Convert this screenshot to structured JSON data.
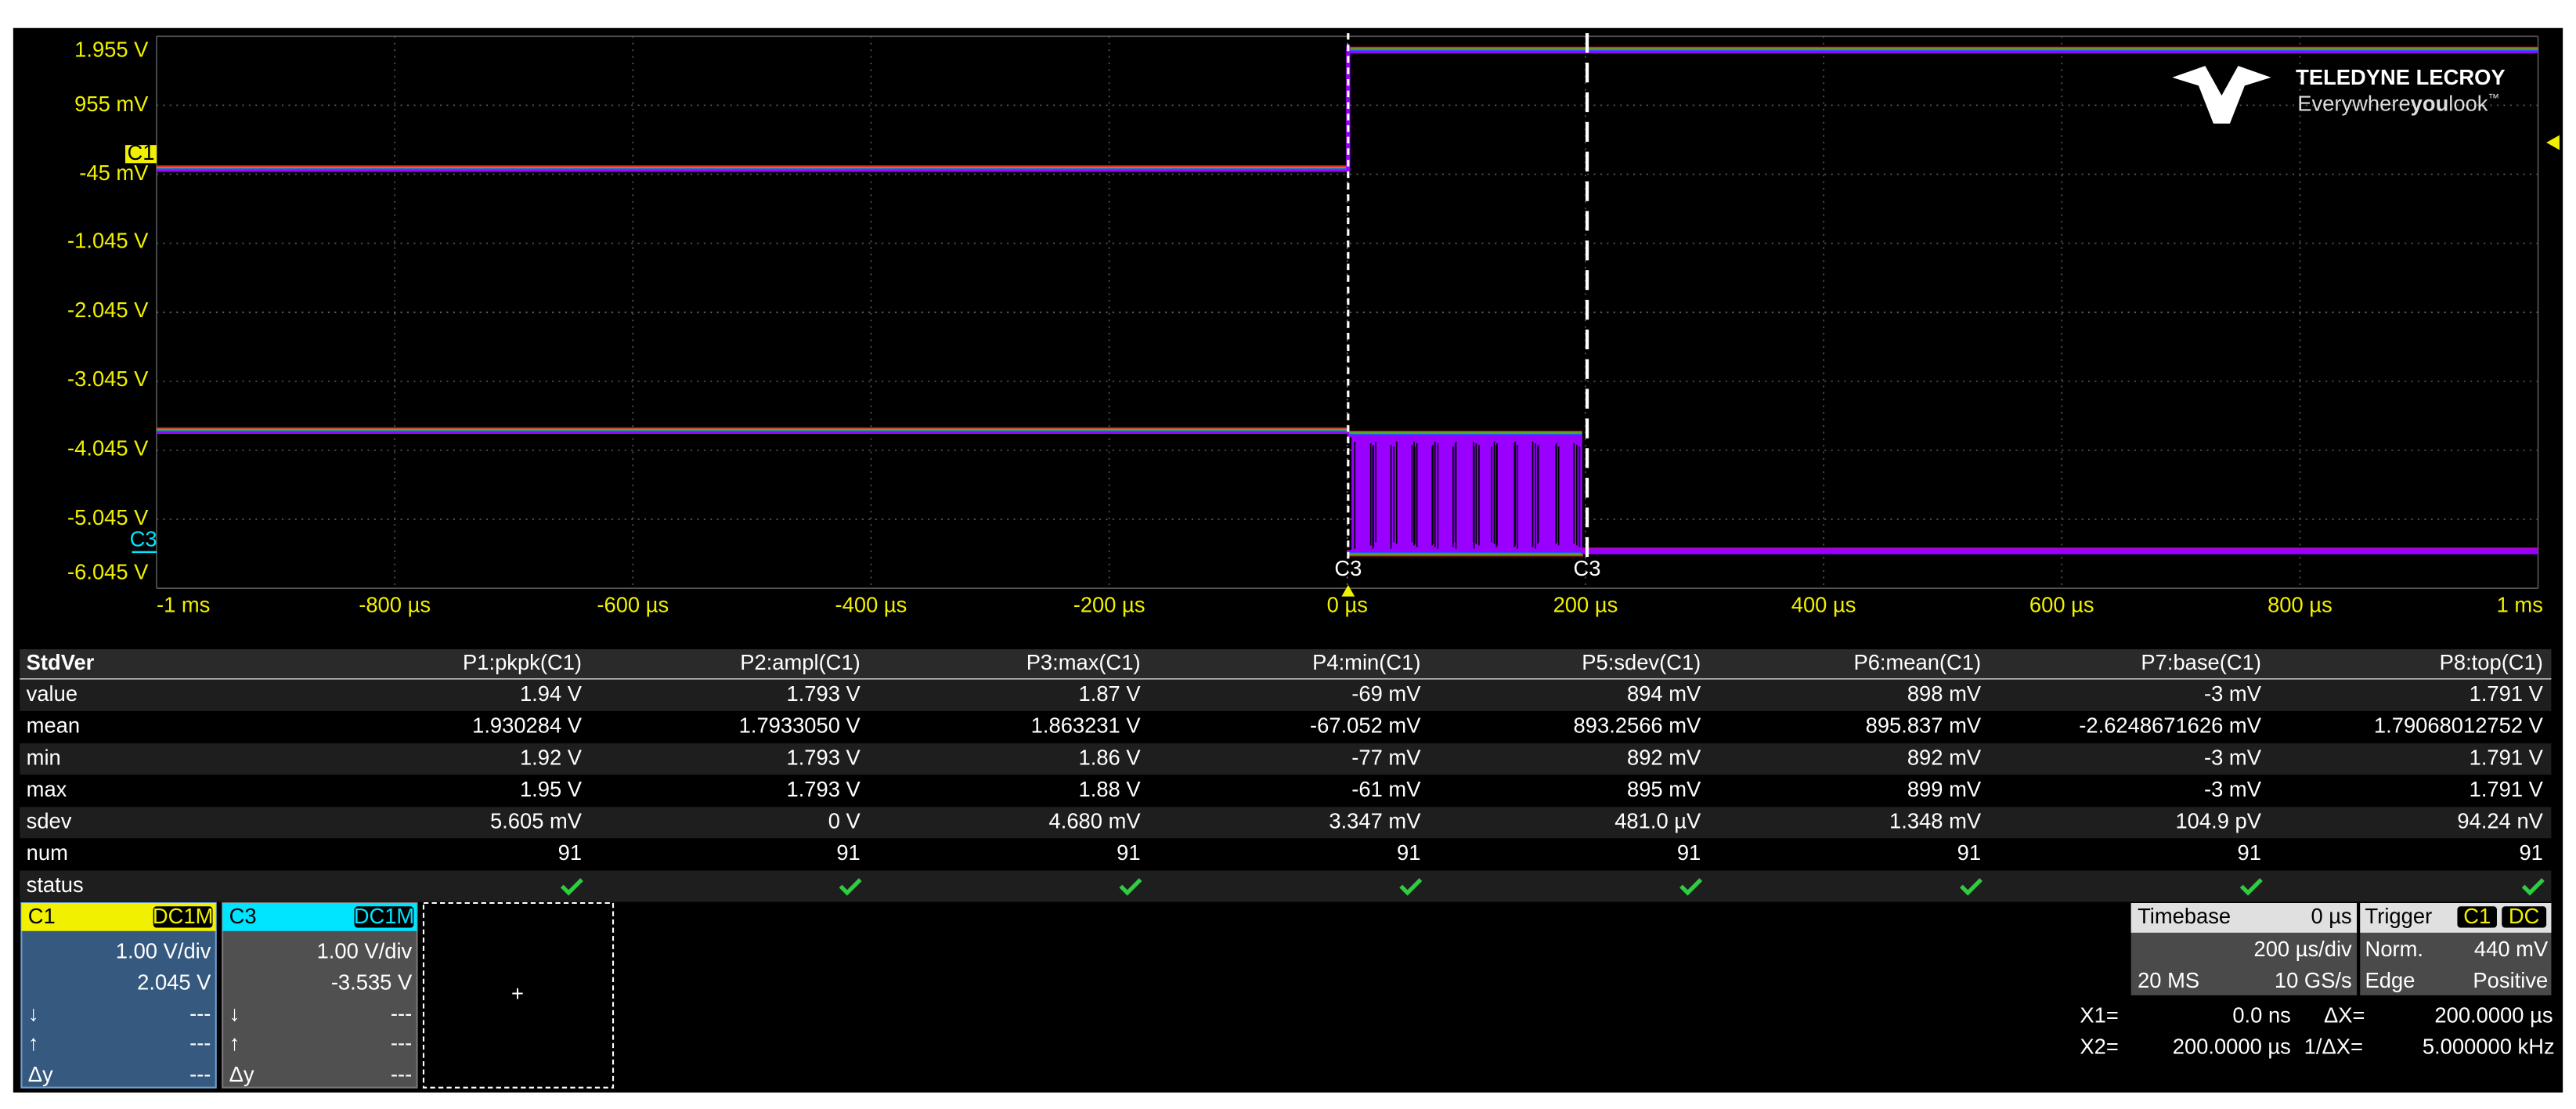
{
  "scope": {
    "y_axis_labels": [
      "1.955 V",
      "955 mV",
      "-45 mV",
      "-1.045 V",
      "-2.045 V",
      "-3.045 V",
      "-4.045 V",
      "-5.045 V",
      "-6.045 V"
    ],
    "x_axis_labels": [
      "-1 ms",
      "-800 µs",
      "-600 µs",
      "-400 µs",
      "-200 µs",
      "0 µs",
      "200 µs",
      "400 µs",
      "600 µs",
      "800 µs",
      "1 ms"
    ],
    "channel_markers": {
      "c1": "C1",
      "c3": "C3"
    },
    "cursor_labels": [
      "C3",
      "C3"
    ],
    "logo": {
      "brand": "TELEDYNE LECROY",
      "tagline_pre": "Everywhere",
      "tagline_bold": "you",
      "tagline_post": "look",
      "tm": "™"
    }
  },
  "measurements": {
    "title": "StdVer",
    "headers": [
      "P1:pkpk(C1)",
      "P2:ampl(C1)",
      "P3:max(C1)",
      "P4:min(C1)",
      "P5:sdev(C1)",
      "P6:mean(C1)",
      "P7:base(C1)",
      "P8:top(C1)"
    ],
    "rows": [
      {
        "label": "value",
        "cells": [
          "1.94 V",
          "1.793 V",
          "1.87 V",
          "-69 mV",
          "894 mV",
          "898 mV",
          "-3 mV",
          "1.791 V"
        ]
      },
      {
        "label": "mean",
        "cells": [
          "1.930284 V",
          "1.7933050 V",
          "1.863231 V",
          "-67.052 mV",
          "893.2566 mV",
          "895.837 mV",
          "-2.6248671626 mV",
          "1.79068012752 V"
        ]
      },
      {
        "label": "min",
        "cells": [
          "1.92 V",
          "1.793 V",
          "1.86 V",
          "-77 mV",
          "892 mV",
          "892 mV",
          "-3 mV",
          "1.791 V"
        ]
      },
      {
        "label": "max",
        "cells": [
          "1.95 V",
          "1.793 V",
          "1.88 V",
          "-61 mV",
          "895 mV",
          "899 mV",
          "-3 mV",
          "1.791 V"
        ]
      },
      {
        "label": "sdev",
        "cells": [
          "5.605 mV",
          "0 V",
          "4.680 mV",
          "3.347 mV",
          "481.0 µV",
          "1.348 mV",
          "104.9 pV",
          "94.24 nV"
        ]
      },
      {
        "label": "num",
        "cells": [
          "91",
          "91",
          "91",
          "91",
          "91",
          "91",
          "91",
          "91"
        ]
      },
      {
        "label": "status",
        "cells": []
      }
    ]
  },
  "channels": [
    {
      "name": "C1",
      "coupling": "DC1M",
      "scale": "1.00 V/div",
      "offset": "2.045 V",
      "down": "↓",
      "down_value": "---",
      "up": "↑",
      "up_value": "---",
      "dy": "Δy",
      "dy_value": "---"
    },
    {
      "name": "C3",
      "coupling": "DC1M",
      "scale": "1.00 V/div",
      "offset": "-3.535 V",
      "down": "↓",
      "down_value": "---",
      "up": "↑",
      "up_value": "---",
      "dy": "Δy",
      "dy_value": "---"
    }
  ],
  "add_button": "+",
  "timebase": {
    "title": "Timebase",
    "delay": "0 µs",
    "scale": "200 µs/div",
    "memory": "20 MS",
    "rate": "10 GS/s"
  },
  "trigger": {
    "title": "Trigger",
    "source": "C1",
    "coupling": "DC",
    "mode": "Norm.",
    "level": "440 mV",
    "type": "Edge",
    "slope": "Positive"
  },
  "cursors": {
    "x1_label": "X1=",
    "x1": "0.0 ns",
    "dx_label": "ΔX=",
    "dx": "200.0000 µs",
    "x2_label": "X2=",
    "x2": "200.0000 µs",
    "inv_label": "1/ΔX=",
    "inv": "5.000000 kHz"
  }
}
